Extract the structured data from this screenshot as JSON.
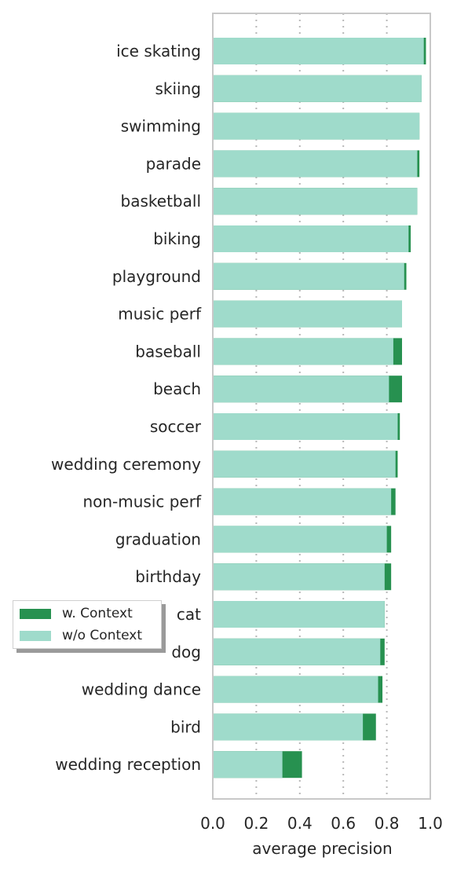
{
  "chart_data": {
    "type": "bar",
    "orientation": "horizontal",
    "stacked_overlay": true,
    "categories": [
      "ice skating",
      "skiing",
      "swimming",
      "parade",
      "basketball",
      "biking",
      "playground",
      "music perf",
      "baseball",
      "beach",
      "soccer",
      "wedding ceremony",
      "non-music perf",
      "graduation",
      "birthday",
      "cat",
      "dog",
      "wedding dance",
      "bird",
      "wedding reception"
    ],
    "series": [
      {
        "name": "w/o Context",
        "color": "#9fdbcb",
        "values": [
          0.97,
          0.96,
          0.95,
          0.94,
          0.94,
          0.9,
          0.88,
          0.87,
          0.83,
          0.81,
          0.85,
          0.84,
          0.82,
          0.8,
          0.79,
          0.79,
          0.77,
          0.76,
          0.69,
          0.32
        ]
      },
      {
        "name": "w. Context",
        "color": "#279150",
        "values": [
          0.98,
          0.96,
          0.95,
          0.95,
          0.94,
          0.91,
          0.89,
          0.87,
          0.87,
          0.87,
          0.86,
          0.85,
          0.84,
          0.82,
          0.82,
          0.79,
          0.79,
          0.78,
          0.75,
          0.41
        ]
      }
    ],
    "xlabel": "average precision",
    "xlim": [
      0.0,
      1.0
    ],
    "xticks": [
      "0.0",
      "0.2",
      "0.4",
      "0.6",
      "0.8",
      "1.0"
    ],
    "grid": "vertical dotted",
    "legend_position": "lower-left"
  }
}
